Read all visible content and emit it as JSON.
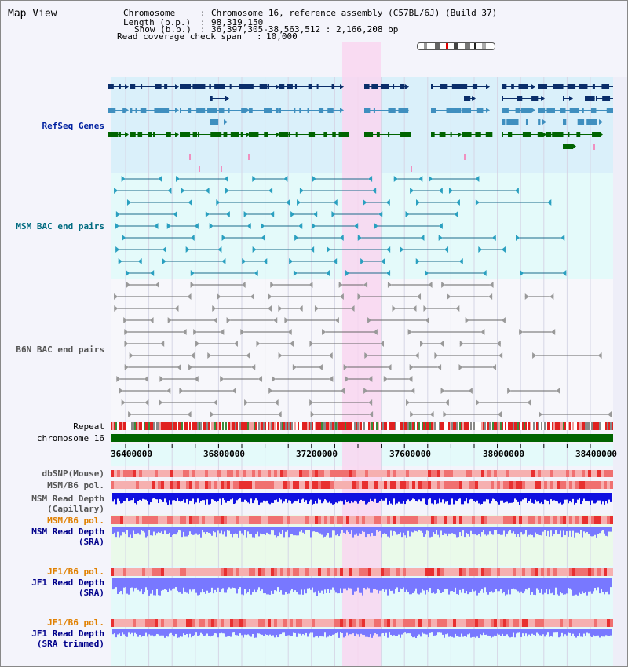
{
  "title": "Map View",
  "header": {
    "chromosome_label": "Chromosome",
    "chromosome_value": "Chromosome 16, reference assembly (C57BL/6J) (Build 37)",
    "length_label": "Length (b.p.)",
    "length_value": "98,319,150",
    "show_label": "Show (b.p.)",
    "show_value": "36,397,305-38,563,512 : 2,166,208 bp",
    "read_label": "Read coverage check span",
    "read_value": "10,000"
  },
  "tracks": {
    "refseq": "RefSeq Genes",
    "msm_bac": "MSM BAC end pairs",
    "b6n_bac": "B6N BAC end pairs",
    "repeat": "Repeat",
    "chromosome": "chromosome 16",
    "dbsnp": "dbSNP(Mouse)",
    "msm_b6_pol1": "MSM/B6 pol.",
    "msm_depth_cap_1": "MSM Read Depth",
    "msm_depth_cap_2": "(Capillary)",
    "msm_b6_pol2": "MSM/B6 pol.",
    "msm_depth_sra_1": "MSM Read Depth",
    "msm_depth_sra_2": "(SRA)",
    "jf1_b6_pol1": "JF1/B6 pol.",
    "jf1_depth_sra_1": "JF1 Read Depth",
    "jf1_depth_sra_2": "(SRA)",
    "jf1_b6_pol2": "JF1/B6 pol.",
    "jf1_depth_trim_1": "JF1 Read Depth",
    "jf1_depth_trim_2": "(SRA trimmed)"
  },
  "axis": {
    "ticks": [
      "36400000",
      "36800000",
      "37200000",
      "37600000",
      "38000000",
      "38400000"
    ]
  },
  "colors": {
    "refseq_dark": "#0b2e6a",
    "refseq_mid": "#3f8fbf",
    "refseq_green": "#006400",
    "msm_label": "#006b80",
    "b6n_label": "#555555",
    "depth_blue": "#1010e0",
    "depth_light": "#7878ff",
    "pol_label": "#e08000",
    "depth_label": "#00008b",
    "highlight": "#f9d6f0"
  }
}
